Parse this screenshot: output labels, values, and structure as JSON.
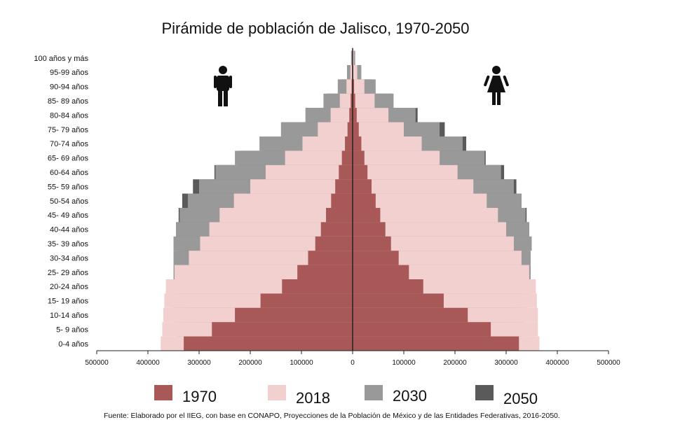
{
  "chart_data": {
    "type": "bar",
    "orientation": "horizontal-pyramid",
    "title": "Pirámide de población de Jalisco, 1970-2050",
    "categories": [
      "0-4 años",
      "5- 9 años",
      "10-14 años",
      "15- 19 años",
      "20-24 años",
      "25- 29 años",
      "30-34 años",
      "35- 39 años",
      "40-44 años",
      "45- 49 años",
      "50-54 años",
      "55- 59 años",
      "60-64 años",
      "65- 69 años",
      "70-74 años",
      "75- 79 años",
      "80-84 años",
      "85- 89 años",
      "90-94 años",
      "95-99 años",
      "100 años y más"
    ],
    "x_ticks": [
      "500000",
      "400000",
      "300000",
      "200000",
      "100000",
      "0",
      "100000",
      "200000",
      "300000",
      "400000",
      "500000"
    ],
    "xlim": [
      -500000,
      500000
    ],
    "series": [
      {
        "name": "1970",
        "color": "#a85856",
        "male": [
          330000,
          275000,
          230000,
          180000,
          138000,
          108000,
          87000,
          73000,
          62000,
          52000,
          42000,
          34000,
          27000,
          21000,
          15000,
          10000,
          6500,
          3800,
          2000,
          900,
          300
        ],
        "female": [
          325000,
          270000,
          225000,
          178000,
          138000,
          110000,
          90000,
          75000,
          64000,
          54000,
          45000,
          37000,
          29000,
          23000,
          17000,
          12000,
          8000,
          5000,
          2800,
          1200,
          400
        ]
      },
      {
        "name": "2018",
        "color": "#f2d0cf",
        "male": [
          375000,
          372000,
          370000,
          368000,
          365000,
          348000,
          320000,
          298000,
          280000,
          260000,
          232000,
          200000,
          170000,
          132000,
          98000,
          68000,
          43000,
          25000,
          12000,
          4500,
          1200
        ],
        "female": [
          365000,
          362000,
          362000,
          360000,
          358000,
          345000,
          330000,
          315000,
          300000,
          284000,
          262000,
          236000,
          205000,
          170000,
          135000,
          100000,
          70000,
          43000,
          23000,
          9000,
          2500
        ]
      },
      {
        "name": "2030",
        "color": "#999999",
        "male": [
          345000,
          345000,
          348000,
          352000,
          350000,
          350000,
          350000,
          350000,
          345000,
          338000,
          322000,
          300000,
          268000,
          230000,
          182000,
          140000,
          92000,
          57000,
          29000,
          11000,
          3000
        ],
        "female": [
          330000,
          332000,
          335000,
          340000,
          345000,
          348000,
          348000,
          350000,
          345000,
          338000,
          330000,
          315000,
          290000,
          258000,
          215000,
          170000,
          123000,
          80000,
          45000,
          17000,
          5000
        ]
      },
      {
        "name": "2050",
        "color": "#5a5a5a",
        "male": [
          300000,
          310000,
          320000,
          330000,
          335000,
          340000,
          340000,
          345000,
          345000,
          340000,
          333000,
          312000,
          270000,
          222000,
          175000,
          138000,
          92000,
          50000,
          22000,
          8000,
          2000
        ],
        "female": [
          290000,
          300000,
          310000,
          320000,
          328000,
          335000,
          340000,
          345000,
          345000,
          340000,
          330000,
          320000,
          296000,
          260000,
          222000,
          180000,
          127000,
          77000,
          37000,
          14000,
          3500
        ]
      }
    ],
    "legend_position": "bottom",
    "icons": [
      "male-figure-icon",
      "female-figure-icon"
    ]
  },
  "source": "Fuente: Elaborado por el IIEG, con base en CONAPO, Proyecciones de la Población de México y de las Entidades Federativas, 2016-2050."
}
